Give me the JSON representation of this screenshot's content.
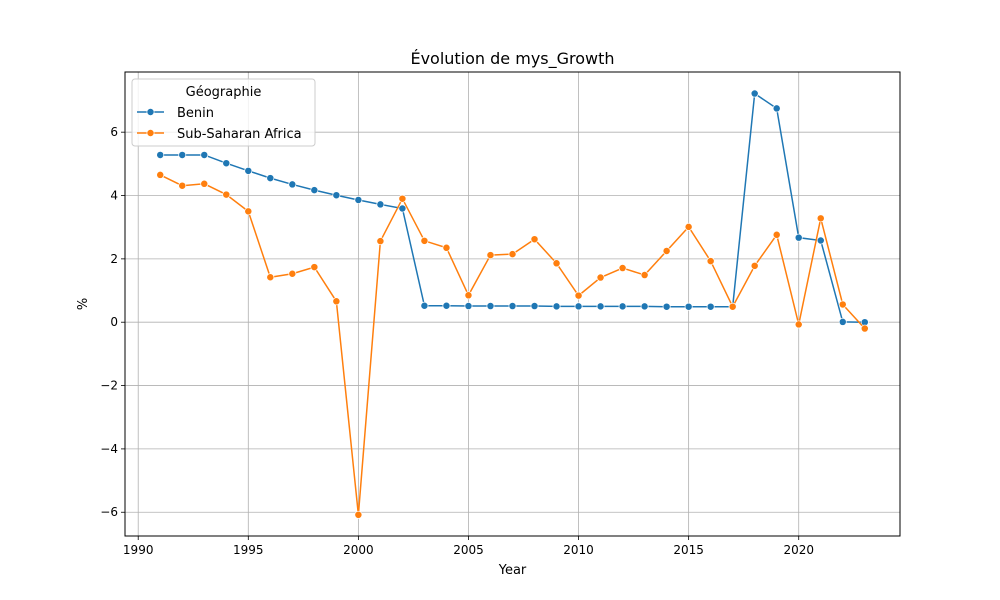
{
  "chart_data": {
    "type": "line",
    "title": "Évolution de mys_Growth",
    "xlabel": "Year",
    "ylabel": "%",
    "xlim": [
      1989.4,
      2024.6
    ],
    "ylim": [
      -6.75,
      7.9
    ],
    "xticks": [
      1990,
      1995,
      2000,
      2005,
      2010,
      2015,
      2020
    ],
    "yticks": [
      -6,
      -4,
      -2,
      0,
      2,
      4,
      6
    ],
    "grid": true,
    "legend": {
      "title": "Géographie",
      "placement": "top-left"
    },
    "x": [
      1991,
      1992,
      1993,
      1994,
      1995,
      1996,
      1997,
      1998,
      1999,
      2000,
      2001,
      2002,
      2003,
      2004,
      2005,
      2006,
      2007,
      2008,
      2009,
      2010,
      2011,
      2012,
      2013,
      2014,
      2015,
      2016,
      2017,
      2018,
      2019,
      2020,
      2021,
      2022,
      2023
    ],
    "series": [
      {
        "name": "Benin",
        "color": "#1f77b4",
        "values": [
          5.28,
          5.28,
          5.28,
          5.02,
          4.78,
          4.55,
          4.35,
          4.17,
          4.01,
          3.86,
          3.72,
          3.59,
          0.52,
          0.52,
          0.51,
          0.51,
          0.51,
          0.51,
          0.5,
          0.5,
          0.5,
          0.5,
          0.5,
          0.49,
          0.49,
          0.49,
          0.49,
          7.22,
          6.75,
          2.67,
          2.58,
          0.01,
          0.0
        ]
      },
      {
        "name": "Sub-Saharan Africa",
        "color": "#ff7f0e",
        "values": [
          4.65,
          4.31,
          4.37,
          4.03,
          3.5,
          1.42,
          1.53,
          1.74,
          0.66,
          -6.08,
          2.56,
          3.9,
          2.57,
          2.35,
          0.85,
          2.12,
          2.15,
          2.62,
          1.86,
          0.84,
          1.41,
          1.71,
          1.49,
          2.25,
          3.01,
          1.93,
          0.49,
          1.78,
          2.76,
          -0.07,
          3.28,
          0.56,
          -0.2
        ]
      }
    ]
  }
}
